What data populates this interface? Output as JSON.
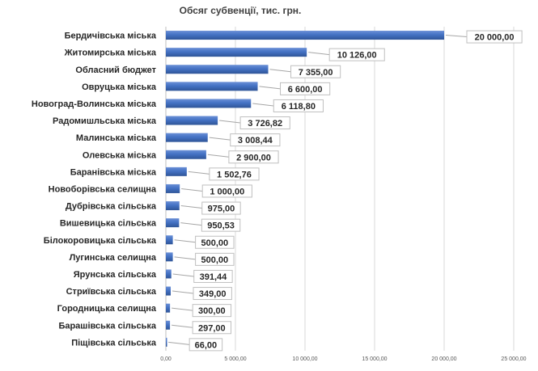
{
  "chart_data": {
    "type": "bar",
    "orientation": "horizontal",
    "title": "Обсяг субвенції, тис. грн.",
    "categories": [
      "Бердичівська міська",
      "Житомирська міська",
      "Обласний  бюджет",
      "Овруцька міська",
      "Новоград-Волинська міська",
      "Радомишльська міська",
      "Малинська міська",
      "Олевська міська",
      "Баранівська міська",
      "Новоборівська селищна",
      "Дубрівська сільська",
      "Вишевицька сільська",
      "Білокоровицька сільська",
      "Лугинська селищна",
      "Ярунська сільська",
      "Стриївська сільська",
      "Городницька селищна",
      "Барашівська сільська",
      "Піщівська сільська"
    ],
    "values": [
      20000,
      10126,
      7355,
      6600,
      6118.8,
      3726.82,
      3008.44,
      2900,
      1502.76,
      1000,
      975,
      950.53,
      500,
      500,
      391.44,
      349,
      300,
      297,
      66
    ],
    "data_labels": [
      "20 000,00",
      "10 126,00",
      "7 355,00",
      "6 600,00",
      "6 118,80",
      "3 726,82",
      "3 008,44",
      "2 900,00",
      "1 502,76",
      "1 000,00",
      "975,00",
      "950,53",
      "500,00",
      "500,00",
      "391,44",
      "349,00",
      "300,00",
      "297,00",
      "66,00"
    ],
    "xlim": [
      0,
      25000
    ],
    "x_ticks": [
      0,
      5000,
      10000,
      15000,
      20000,
      25000
    ],
    "x_tick_labels": [
      "0,00",
      "5 000,00",
      "10 000,00",
      "15 000,00",
      "20 000,00",
      "25 000,00"
    ],
    "grid": true,
    "legend": "none",
    "bar_color": "#4472c4"
  }
}
